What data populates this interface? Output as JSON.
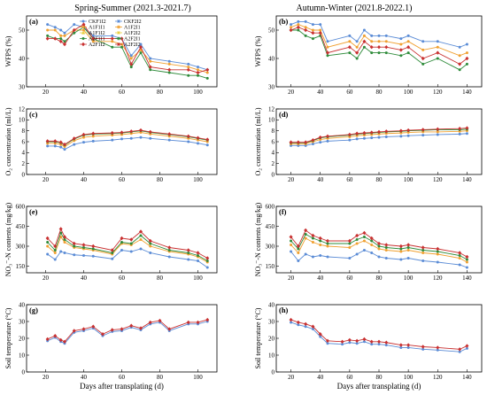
{
  "column_titles": [
    "Spring-Summer (2021.3-2021.7)",
    "Autumn-Winter (2021.8-2022.1)"
  ],
  "legend": {
    "entries": [
      {
        "name": "CKF1I2",
        "color": "#5b8cd6",
        "marker": "circle"
      },
      {
        "name": "A1F1I1",
        "color": "#f0a030",
        "marker": "circle"
      },
      {
        "name": "A1F1I2",
        "color": "#e8d040",
        "marker": "triangle"
      },
      {
        "name": "A2F1I1",
        "color": "#2e8b3a",
        "marker": "circle"
      },
      {
        "name": "A2F1I2",
        "color": "#c83030",
        "marker": "diamond"
      },
      {
        "name": "CKF2I2",
        "color": "#5b8cd6",
        "marker": "star"
      },
      {
        "name": "A1F2I1",
        "color": "#f0a030",
        "marker": "star"
      },
      {
        "name": "A1F2I2",
        "color": "#e8d040",
        "marker": "star"
      },
      {
        "name": "A2F2I1",
        "color": "#2e8b3a",
        "marker": "star"
      },
      {
        "name": "A2F2I2",
        "color": "#c83030",
        "marker": "star"
      }
    ]
  },
  "chart_data": [
    {
      "panel": "(a)",
      "type": "line",
      "xlabel": "",
      "ylabel": "WFPS (%)",
      "xlim": [
        10,
        110
      ],
      "ylim": [
        30,
        55
      ],
      "xticks": [
        20,
        40,
        60,
        80,
        100
      ],
      "yticks": [
        30,
        40,
        50
      ],
      "x": [
        21,
        25,
        28,
        30,
        35,
        40,
        45,
        55,
        60,
        65,
        70,
        75,
        85,
        95,
        100,
        105
      ],
      "series": [
        {
          "name": "CKF1I2",
          "values": [
            52,
            51,
            50,
            49,
            52,
            51,
            48,
            48,
            47,
            41,
            45,
            40,
            39,
            38,
            37,
            36
          ]
        },
        {
          "name": "A1F1I1",
          "values": [
            50,
            50,
            48,
            48,
            50,
            50,
            46,
            46,
            45,
            40,
            43,
            39,
            38,
            37,
            36,
            35
          ]
        },
        {
          "name": "A2F1I1",
          "values": [
            48,
            47,
            47,
            46,
            49,
            51,
            47,
            44,
            44,
            37,
            42,
            36,
            35,
            34,
            34,
            33
          ]
        },
        {
          "name": "A2F1I2",
          "values": [
            47,
            47,
            46,
            45,
            50,
            52,
            47,
            47,
            47,
            38,
            44,
            37,
            36,
            36,
            35,
            36
          ]
        }
      ]
    },
    {
      "panel": "(b)",
      "type": "line",
      "xlabel": "",
      "ylabel": "WFPS (%)",
      "xlim": [
        10,
        150
      ],
      "ylim": [
        30,
        55
      ],
      "xticks": [
        20,
        40,
        60,
        80,
        100,
        120,
        140
      ],
      "yticks": [
        30,
        40,
        50
      ],
      "x": [
        20,
        25,
        30,
        35,
        40,
        45,
        60,
        65,
        70,
        75,
        80,
        85,
        95,
        100,
        110,
        120,
        135,
        140
      ],
      "series": [
        {
          "name": "CKF1I2",
          "values": [
            52,
            53,
            53,
            52,
            52,
            46,
            48,
            46,
            50,
            48,
            48,
            48,
            47,
            48,
            46,
            46,
            44,
            45
          ]
        },
        {
          "name": "A1F1I1",
          "values": [
            51,
            52,
            51,
            50,
            50,
            44,
            46,
            44,
            48,
            46,
            46,
            46,
            45,
            46,
            43,
            44,
            41,
            42
          ]
        },
        {
          "name": "A2F1I1",
          "values": [
            50,
            50,
            48,
            47,
            48,
            41,
            42,
            40,
            44,
            42,
            42,
            42,
            41,
            42,
            38,
            40,
            36,
            38
          ]
        },
        {
          "name": "A2F1I2",
          "values": [
            50,
            51,
            50,
            49,
            49,
            42,
            44,
            42,
            46,
            44,
            44,
            44,
            43,
            44,
            40,
            42,
            38,
            40
          ]
        }
      ]
    },
    {
      "panel": "(c)",
      "type": "line",
      "xlabel": "",
      "ylabel": "O₂ concentration (ml/L)",
      "xlim": [
        10,
        110
      ],
      "ylim": [
        0,
        12
      ],
      "xticks": [
        20,
        40,
        60,
        80,
        100
      ],
      "yticks": [
        0,
        2,
        4,
        6,
        8,
        10,
        12
      ],
      "x": [
        21,
        25,
        28,
        30,
        35,
        40,
        45,
        55,
        60,
        65,
        70,
        75,
        85,
        95,
        100,
        105
      ],
      "series": [
        {
          "name": "CKF1I2",
          "values": [
            5.2,
            5.2,
            5.0,
            4.6,
            5.5,
            5.9,
            6.1,
            6.3,
            6.5,
            6.6,
            6.8,
            6.6,
            6.3,
            6.0,
            5.7,
            5.4
          ]
        },
        {
          "name": "A1F1I1",
          "values": [
            5.7,
            5.7,
            5.5,
            5.1,
            6.2,
            6.8,
            7.0,
            7.2,
            7.3,
            7.5,
            7.7,
            7.4,
            7.0,
            6.6,
            6.3,
            6.0
          ]
        },
        {
          "name": "A2F1I1",
          "values": [
            6.0,
            6.0,
            5.8,
            5.4,
            6.5,
            7.2,
            7.4,
            7.5,
            7.6,
            7.8,
            8.0,
            7.7,
            7.3,
            6.9,
            6.6,
            6.3
          ]
        },
        {
          "name": "A2F1I2",
          "values": [
            6.1,
            6.1,
            5.9,
            5.5,
            6.6,
            7.3,
            7.5,
            7.6,
            7.7,
            7.9,
            8.1,
            7.8,
            7.4,
            7.0,
            6.7,
            6.4
          ]
        }
      ]
    },
    {
      "panel": "(d)",
      "type": "line",
      "xlabel": "",
      "ylabel": "O₂ concentration (ml/L)",
      "xlim": [
        10,
        150
      ],
      "ylim": [
        0,
        12
      ],
      "xticks": [
        20,
        40,
        60,
        80,
        100,
        120,
        140
      ],
      "yticks": [
        0,
        2,
        4,
        6,
        8,
        10,
        12
      ],
      "x": [
        20,
        25,
        30,
        35,
        40,
        45,
        60,
        65,
        70,
        75,
        80,
        85,
        95,
        100,
        110,
        120,
        135,
        140
      ],
      "series": [
        {
          "name": "CKF1I2",
          "values": [
            5.3,
            5.3,
            5.3,
            5.6,
            5.9,
            6.1,
            6.3,
            6.5,
            6.6,
            6.7,
            6.8,
            6.9,
            7.0,
            7.1,
            7.2,
            7.3,
            7.4,
            7.5
          ]
        },
        {
          "name": "A1F1I1",
          "values": [
            5.6,
            5.6,
            5.6,
            6.0,
            6.4,
            6.6,
            6.9,
            7.1,
            7.2,
            7.3,
            7.4,
            7.5,
            7.6,
            7.7,
            7.8,
            7.8,
            7.9,
            8.0
          ]
        },
        {
          "name": "A2F1I1",
          "values": [
            5.8,
            5.8,
            5.8,
            6.2,
            6.7,
            6.9,
            7.2,
            7.4,
            7.5,
            7.6,
            7.7,
            7.8,
            7.9,
            8.0,
            8.1,
            8.2,
            8.2,
            8.3
          ]
        },
        {
          "name": "A2F1I2",
          "values": [
            5.9,
            5.9,
            5.9,
            6.3,
            6.8,
            7.0,
            7.3,
            7.5,
            7.6,
            7.7,
            7.8,
            7.9,
            8.0,
            8.1,
            8.2,
            8.3,
            8.4,
            8.5
          ]
        }
      ]
    },
    {
      "panel": "(e)",
      "type": "line",
      "xlabel": "",
      "ylabel": "NO₃⁻-N contents (mg/kg)",
      "xlim": [
        10,
        110
      ],
      "ylim": [
        100,
        600
      ],
      "xticks": [
        20,
        40,
        60,
        80,
        100
      ],
      "yticks": [
        150,
        300,
        450,
        600
      ],
      "x": [
        21,
        25,
        28,
        30,
        35,
        40,
        45,
        55,
        60,
        65,
        70,
        75,
        85,
        95,
        100,
        105
      ],
      "series": [
        {
          "name": "CKF1I2",
          "values": [
            240,
            200,
            260,
            250,
            235,
            230,
            225,
            205,
            270,
            260,
            280,
            250,
            220,
            200,
            190,
            140
          ]
        },
        {
          "name": "A1F1I1",
          "values": [
            300,
            250,
            370,
            330,
            290,
            280,
            270,
            240,
            320,
            310,
            350,
            300,
            260,
            240,
            220,
            180
          ]
        },
        {
          "name": "A2F1I1",
          "values": [
            330,
            270,
            400,
            350,
            300,
            290,
            280,
            250,
            330,
            320,
            380,
            320,
            270,
            250,
            230,
            190
          ]
        },
        {
          "name": "A2F1I2",
          "values": [
            360,
            300,
            430,
            370,
            320,
            310,
            300,
            270,
            360,
            350,
            410,
            340,
            290,
            270,
            250,
            210
          ]
        }
      ]
    },
    {
      "panel": "(f)",
      "type": "line",
      "xlabel": "",
      "ylabel": "NO₃⁻-N contents (mg/kg)",
      "xlim": [
        10,
        150
      ],
      "ylim": [
        100,
        600
      ],
      "xticks": [
        20,
        40,
        60,
        80,
        100,
        120,
        140
      ],
      "yticks": [
        150,
        300,
        450,
        600
      ],
      "x": [
        20,
        25,
        30,
        35,
        40,
        45,
        60,
        65,
        70,
        75,
        80,
        85,
        95,
        100,
        110,
        120,
        135,
        140
      ],
      "series": [
        {
          "name": "CKF1I2",
          "values": [
            260,
            190,
            240,
            220,
            230,
            220,
            210,
            240,
            270,
            250,
            220,
            210,
            200,
            210,
            190,
            180,
            160,
            140
          ]
        },
        {
          "name": "A1F1I1",
          "values": [
            310,
            250,
            360,
            330,
            310,
            300,
            290,
            320,
            340,
            310,
            280,
            270,
            260,
            270,
            250,
            240,
            210,
            180
          ]
        },
        {
          "name": "A2F1I1",
          "values": [
            340,
            280,
            390,
            360,
            340,
            320,
            320,
            350,
            370,
            340,
            300,
            290,
            280,
            290,
            270,
            260,
            230,
            200
          ]
        },
        {
          "name": "A2F1I2",
          "values": [
            370,
            300,
            420,
            380,
            360,
            340,
            340,
            380,
            400,
            360,
            320,
            310,
            300,
            310,
            290,
            280,
            250,
            220
          ]
        }
      ]
    },
    {
      "panel": "(g)",
      "type": "line",
      "xlabel": "Days after transplating (d)",
      "ylabel": "Soil temperature (°C)",
      "xlim": [
        10,
        110
      ],
      "ylim": [
        0,
        40
      ],
      "xticks": [
        20,
        40,
        60,
        80,
        100
      ],
      "yticks": [
        0,
        10,
        20,
        30,
        40
      ],
      "x": [
        21,
        25,
        28,
        30,
        35,
        40,
        45,
        50,
        55,
        60,
        65,
        70,
        75,
        80,
        85,
        95,
        100,
        105
      ],
      "series": [
        {
          "name": "CKF1I2",
          "values": [
            18.5,
            20.5,
            18.0,
            17.0,
            23.5,
            24.5,
            26.0,
            21.5,
            24.0,
            24.5,
            26.5,
            25.0,
            28.5,
            29.5,
            24.5,
            28.5,
            28.5,
            30.0
          ]
        },
        {
          "name": "A2F1I2",
          "values": [
            19.5,
            21.5,
            19.0,
            18.0,
            24.5,
            25.5,
            27.0,
            22.5,
            25.0,
            25.5,
            27.5,
            26.0,
            29.5,
            30.5,
            25.5,
            29.5,
            29.5,
            31.0
          ]
        }
      ]
    },
    {
      "panel": "(h)",
      "type": "line",
      "xlabel": "Days after transplating (d)",
      "ylabel": "Soil temperature (°C)",
      "xlim": [
        10,
        150
      ],
      "ylim": [
        0,
        40
      ],
      "xticks": [
        20,
        40,
        60,
        80,
        100,
        120,
        140
      ],
      "yticks": [
        0,
        10,
        20,
        30,
        40
      ],
      "x": [
        20,
        25,
        30,
        35,
        40,
        45,
        55,
        60,
        65,
        70,
        75,
        80,
        85,
        95,
        100,
        110,
        120,
        135,
        140
      ],
      "series": [
        {
          "name": "CKF1I2",
          "values": [
            29.5,
            28.0,
            27.0,
            25.5,
            21.0,
            17.0,
            16.5,
            17.5,
            17.0,
            18.0,
            16.5,
            16.5,
            16.0,
            14.5,
            14.5,
            13.5,
            13.0,
            12.0,
            14.0
          ]
        },
        {
          "name": "A2F1I2",
          "values": [
            31.0,
            29.5,
            28.5,
            27.0,
            22.5,
            18.5,
            18.0,
            19.0,
            18.5,
            19.5,
            18.0,
            18.0,
            17.5,
            16.0,
            16.0,
            15.0,
            14.5,
            13.5,
            15.5
          ]
        }
      ]
    }
  ]
}
